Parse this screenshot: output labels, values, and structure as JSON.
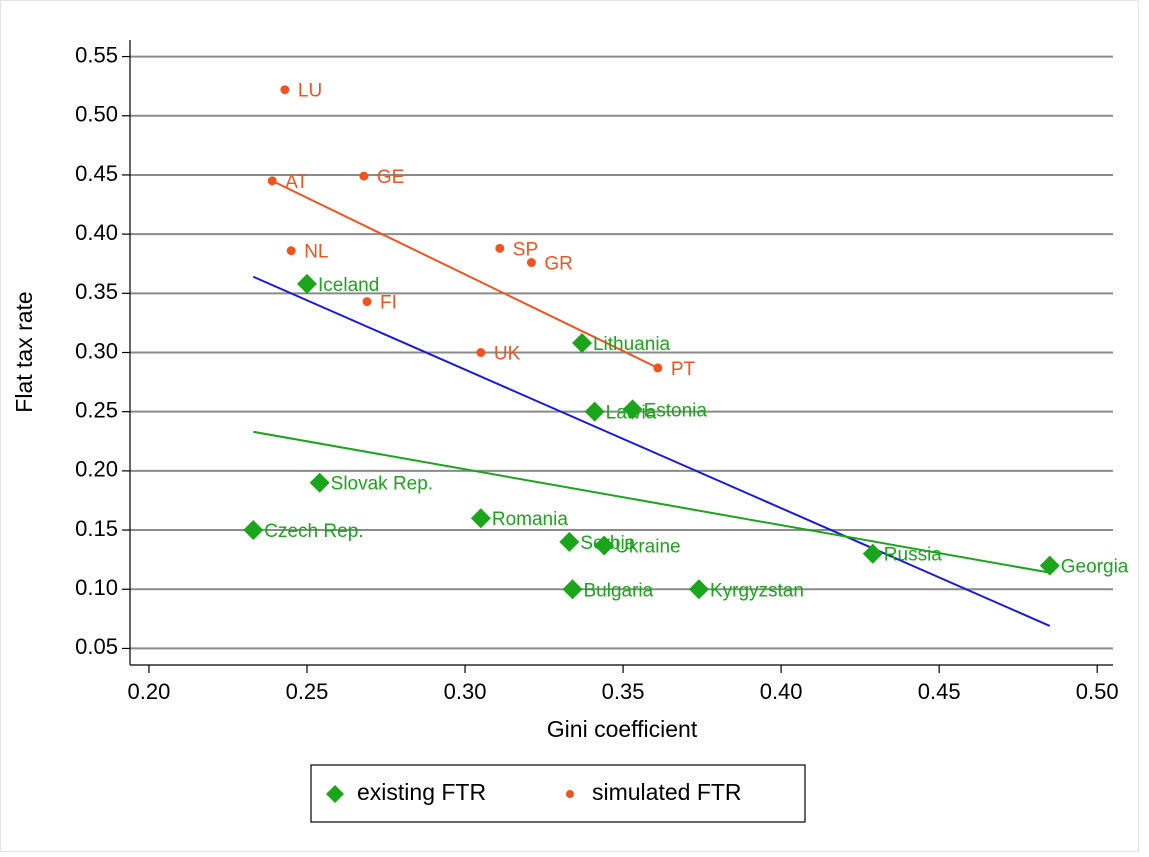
{
  "chart_data": {
    "type": "scatter",
    "x_label": "Gini coefficient",
    "y_label": "Flat tax rate",
    "xlim": [
      0.194,
      0.505
    ],
    "ylim": [
      0.036,
      0.564
    ],
    "xticks": [
      {
        "value": 0.2,
        "label": "0.20"
      },
      0.25,
      {
        "value": 0.3,
        "label": "0.30"
      },
      0.35,
      {
        "value": 0.4,
        "label": "0.40"
      },
      0.45,
      {
        "value": 0.5,
        "label": "0.50"
      }
    ],
    "yticks": [
      0.05,
      {
        "value": 0.1,
        "label": "0.10"
      },
      0.15,
      {
        "value": 0.2,
        "label": "0.20"
      },
      0.25,
      {
        "value": 0.3,
        "label": "0.30"
      },
      0.35,
      {
        "value": 0.4,
        "label": "0.40"
      },
      0.45,
      {
        "value": 0.5,
        "label": "0.50"
      },
      0.55
    ],
    "grid": true,
    "legend": "bottom",
    "series": [
      {
        "name": "existing FTR",
        "color": "#1aa51a",
        "marker": "diamond",
        "labels": [
          "Iceland",
          "Lithuania",
          "Latvia",
          "Estonia",
          "Slovak Rep.",
          "Romania",
          "Czech Rep.",
          "Serbia",
          "Ukraine",
          "Bulgaria",
          "Kyrgyzstan",
          "Russia",
          "Georgia"
        ],
        "x": [
          0.25,
          0.337,
          0.341,
          0.353,
          0.254,
          0.305,
          0.233,
          0.333,
          0.344,
          0.334,
          0.374,
          0.429,
          0.485
        ],
        "values": [
          0.358,
          0.308,
          0.25,
          0.252,
          0.19,
          0.16,
          0.15,
          0.14,
          0.137,
          0.1,
          0.1,
          0.13,
          0.12
        ]
      },
      {
        "name": "simulated FTR",
        "color": "#f0541e",
        "marker": "dot",
        "labels": [
          "LU",
          "AT",
          "GE",
          "NL",
          "SP",
          "GR",
          "FI",
          "UK",
          "PT"
        ],
        "x": [
          0.243,
          0.239,
          0.268,
          0.245,
          0.311,
          0.321,
          0.269,
          0.305,
          0.361
        ],
        "values": [
          0.522,
          0.445,
          0.449,
          0.386,
          0.388,
          0.376,
          0.343,
          0.3,
          0.287
        ]
      }
    ],
    "fit_lines": [
      {
        "color": "#f0541e",
        "x": [
          0.239,
          0.361
        ],
        "values": [
          0.445,
          0.287
        ]
      },
      {
        "color": "#1a1adc",
        "x": [
          0.233,
          0.485
        ],
        "values": [
          0.364,
          0.069
        ]
      },
      {
        "color": "#1aa51a",
        "x": [
          0.233,
          0.485
        ],
        "values": [
          0.233,
          0.114
        ]
      }
    ]
  }
}
